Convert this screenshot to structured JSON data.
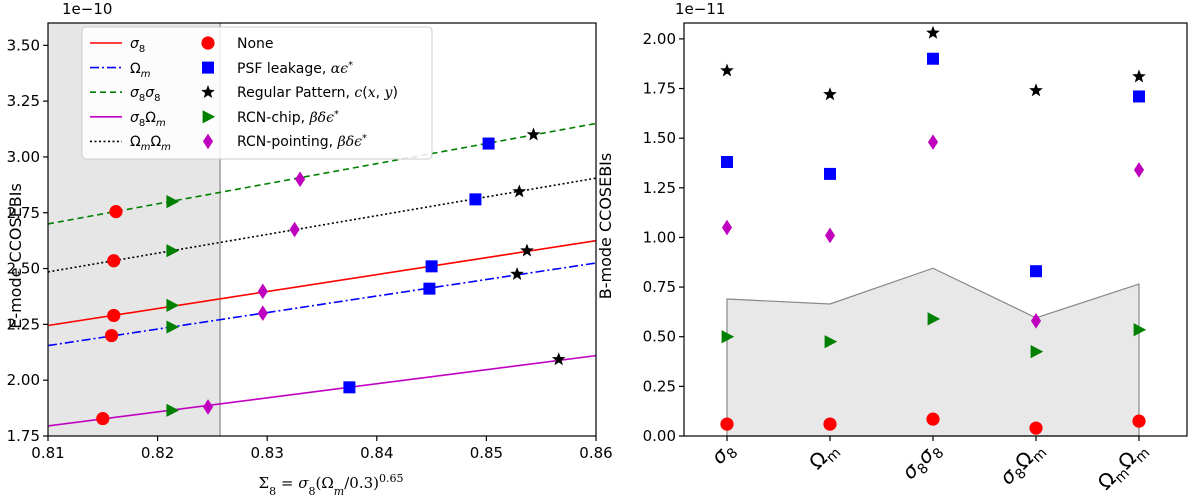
{
  "chart_data": [
    {
      "type": "scatter",
      "panel": "left",
      "offset_text": "1e−10",
      "ylabel": "E-mode CCOSEBIs",
      "xlabel": "Σ8 = σ8(Ωm/0.3)^0.65",
      "xlim": [
        0.81,
        0.86
      ],
      "ylim": [
        1.75,
        3.6
      ],
      "x_ticks": [
        "0.81",
        "0.82",
        "0.83",
        "0.84",
        "0.85",
        "0.86"
      ],
      "y_ticks": [
        "1.75",
        "2.00",
        "2.25",
        "2.50",
        "2.75",
        "3.00",
        "3.25",
        "3.50"
      ],
      "shaded_region": {
        "x0": 0.81,
        "x1": 0.8257
      },
      "grid": false,
      "legend_position": "top-left",
      "lines": [
        {
          "name": "σ8",
          "style": "solid",
          "color": "#ff0000",
          "x": [
            0.81,
            0.86
          ],
          "y": [
            2.245,
            2.625
          ]
        },
        {
          "name": "Ωm",
          "style": "dashdot",
          "color": "#0000ff",
          "x": [
            0.81,
            0.86
          ],
          "y": [
            2.155,
            2.525
          ]
        },
        {
          "name": "σ8σ8",
          "style": "dashed",
          "color": "#008000",
          "x": [
            0.81,
            0.86
          ],
          "y": [
            2.7,
            3.15
          ]
        },
        {
          "name": "σ8Ωm",
          "style": "solid",
          "color": "#c000c0",
          "x": [
            0.81,
            0.86
          ],
          "y": [
            1.795,
            2.11
          ]
        },
        {
          "name": "ΩmΩm",
          "style": "dotted",
          "color": "#000000",
          "x": [
            0.81,
            0.86
          ],
          "y": [
            2.485,
            2.905
          ]
        }
      ],
      "series": [
        {
          "name": "None",
          "marker": "circle",
          "color": "#ff0000",
          "points": [
            [
              0.8162,
              2.755
            ],
            [
              0.816,
              2.535
            ],
            [
              0.816,
              2.29
            ],
            [
              0.8158,
              2.2
            ],
            [
              0.815,
              1.828
            ]
          ]
        },
        {
          "name": "PSF leakage, αϵ*",
          "marker": "square",
          "color": "#0000ff",
          "points": [
            [
              0.8502,
              3.06
            ],
            [
              0.849,
              2.81
            ],
            [
              0.845,
              2.51
            ],
            [
              0.8448,
              2.41
            ],
            [
              0.8375,
              1.968
            ]
          ]
        },
        {
          "name": "Regular Pattern, c(x,y)",
          "marker": "star",
          "color": "#000000",
          "points": [
            [
              0.8543,
              3.1
            ],
            [
              0.853,
              2.845
            ],
            [
              0.8537,
              2.58
            ],
            [
              0.8528,
              2.475
            ],
            [
              0.8566,
              2.093
            ]
          ]
        },
        {
          "name": "RCN-chip, βδϵ*",
          "marker": "triangle-right",
          "color": "#008000",
          "points": [
            [
              0.8213,
              2.8
            ],
            [
              0.8213,
              2.58
            ],
            [
              0.8213,
              2.335
            ],
            [
              0.8213,
              2.238
            ],
            [
              0.8213,
              1.865
            ]
          ]
        },
        {
          "name": "RCN-pointing, βδϵ*",
          "marker": "diamond",
          "color": "#bf00bf",
          "points": [
            [
              0.833,
              2.9
            ],
            [
              0.8325,
              2.675
            ],
            [
              0.8296,
              2.398
            ],
            [
              0.8296,
              2.3
            ],
            [
              0.8246,
              1.88
            ]
          ]
        }
      ]
    },
    {
      "type": "scatter",
      "panel": "right",
      "offset_text": "1e−11",
      "ylabel": "B-mode CCOSEBIs",
      "categories": [
        "σ8",
        "Ωm",
        "σ8σ8",
        "σ8Ωm",
        "ΩmΩm"
      ],
      "ylim": [
        0,
        2.08
      ],
      "y_ticks": [
        "0.00",
        "0.25",
        "0.50",
        "0.75",
        "1.00",
        "1.25",
        "1.50",
        "1.75",
        "2.00"
      ],
      "grid": false,
      "shaded_band": [
        0.69,
        0.665,
        0.845,
        0.595,
        0.765
      ],
      "series": [
        {
          "name": "None",
          "marker": "circle",
          "color": "#ff0000",
          "values": [
            0.06,
            0.06,
            0.085,
            0.04,
            0.075
          ]
        },
        {
          "name": "PSF leakage, αϵ*",
          "marker": "square",
          "color": "#0000ff",
          "values": [
            1.38,
            1.32,
            1.9,
            0.83,
            1.71
          ]
        },
        {
          "name": "Regular Pattern, c(x,y)",
          "marker": "star",
          "color": "#000000",
          "values": [
            1.84,
            1.72,
            2.03,
            1.74,
            1.81
          ]
        },
        {
          "name": "RCN-chip, βδϵ*",
          "marker": "triangle-right",
          "color": "#008000",
          "values": [
            0.5,
            0.475,
            0.59,
            0.425,
            0.535
          ]
        },
        {
          "name": "RCN-pointing, βδϵ*",
          "marker": "diamond",
          "color": "#bf00bf",
          "values": [
            1.05,
            1.01,
            1.48,
            0.58,
            1.34
          ]
        }
      ]
    }
  ]
}
